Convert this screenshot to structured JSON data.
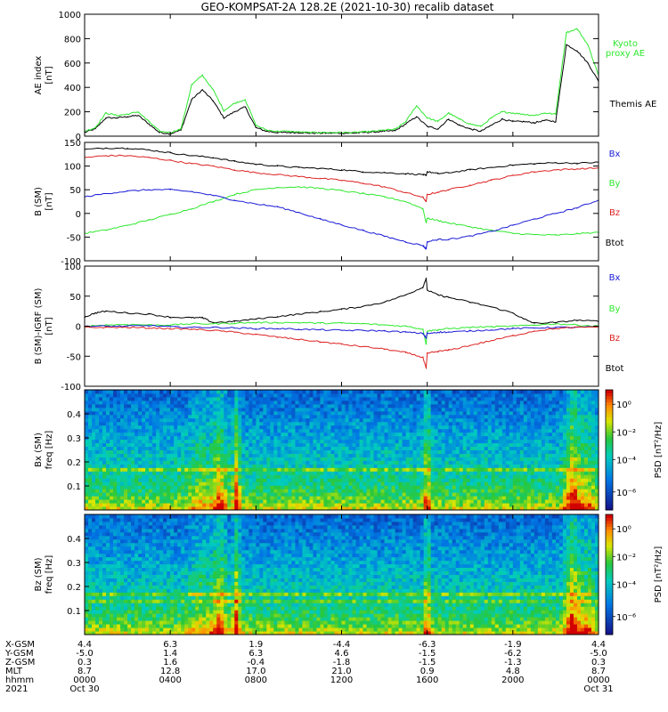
{
  "chart_data": {
    "title": "GEO-KOMPSAT-2A 128.2E (2021-10-30) recalib dataset",
    "type": "multi-panel line + spectrogram",
    "colors": {
      "black": "#000000",
      "green": "#2ee82e",
      "red": "#dd2222",
      "blue": "#1a1ad6"
    },
    "panels": [
      {
        "type": "line",
        "ylabel_main": "AE index",
        "ylabel_unit": "[nT]",
        "ylim": [
          0,
          1000
        ],
        "yticks": [
          "0",
          "200",
          "400",
          "600",
          "800",
          "1000"
        ],
        "legend": [
          {
            "label": "Kyoto proxy AE",
            "color": "#2ee82e"
          },
          {
            "label": "Themis AE",
            "color": "#000000"
          }
        ],
        "series": [
          {
            "name": "Themis AE",
            "color": "#000000",
            "x": [
              0,
              0.5,
              1,
              1.5,
              2,
              2.5,
              3,
              3.5,
              4,
              4.5,
              5,
              5.5,
              6,
              6.5,
              7,
              7.5,
              8,
              8.5,
              9,
              9.5,
              10,
              10.5,
              11,
              11.5,
              12,
              12.5,
              13,
              13.5,
              14,
              14.5,
              15,
              15.5,
              16,
              16.5,
              17,
              17.5,
              18,
              18.5,
              19,
              19.5,
              20,
              20.5,
              21,
              21.5,
              22,
              22.5,
              23,
              23.5,
              24
            ],
            "values": [
              30,
              60,
              150,
              150,
              160,
              170,
              100,
              30,
              20,
              50,
              300,
              380,
              290,
              150,
              200,
              240,
              70,
              40,
              30,
              30,
              30,
              25,
              25,
              25,
              25,
              25,
              30,
              35,
              40,
              45,
              100,
              160,
              80,
              60,
              140,
              90,
              60,
              40,
              90,
              140,
              120,
              120,
              110,
              130,
              120,
              750,
              700,
              600,
              450
            ]
          },
          {
            "name": "Kyoto proxy AE",
            "color": "#2ee82e",
            "x": [
              0,
              0.5,
              1,
              1.5,
              2,
              2.5,
              3,
              3.5,
              4,
              4.5,
              5,
              5.5,
              6,
              6.5,
              7,
              7.5,
              8,
              8.5,
              9,
              9.5,
              10,
              10.5,
              11,
              11.5,
              12,
              12.5,
              13,
              13.5,
              14,
              14.5,
              15,
              15.5,
              16,
              16.5,
              17,
              17.5,
              18,
              18.5,
              19,
              19.5,
              20,
              20.5,
              21,
              21.5,
              22,
              22.5,
              23,
              23.5,
              24
            ],
            "values": [
              40,
              70,
              190,
              170,
              180,
              200,
              120,
              40,
              30,
              60,
              420,
              500,
              380,
              210,
              270,
              300,
              90,
              50,
              40,
              40,
              35,
              30,
              30,
              30,
              30,
              30,
              35,
              40,
              50,
              55,
              120,
              250,
              150,
              120,
              190,
              140,
              100,
              80,
              150,
              200,
              190,
              180,
              170,
              190,
              180,
              850,
              880,
              750,
              500
            ]
          }
        ]
      },
      {
        "type": "line",
        "ylabel_main": "B (SM)",
        "ylabel_unit": "[nT]",
        "ylim": [
          -100,
          150
        ],
        "yticks": [
          "-100",
          "-50",
          "0",
          "50",
          "100",
          "150"
        ],
        "legend": [
          {
            "label": "Bx",
            "color": "#1a1ad6"
          },
          {
            "label": "By",
            "color": "#2ee82e"
          },
          {
            "label": "Bz",
            "color": "#dd2222"
          },
          {
            "label": "Btot",
            "color": "#000000"
          }
        ],
        "series": [
          {
            "name": "Btot",
            "color": "#000000",
            "x": [
              0,
              1,
              2,
              3,
              4,
              5,
              6,
              7,
              8,
              9,
              10,
              11,
              12,
              13,
              14,
              15,
              15.8,
              15.95,
              16,
              16.5,
              17,
              18,
              19,
              20,
              21,
              22,
              23,
              24
            ],
            "values": [
              135,
              138,
              138,
              134,
              128,
              122,
              118,
              110,
              104,
              100,
              97,
              95,
              92,
              88,
              86,
              84,
              82,
              80,
              88,
              84,
              86,
              92,
              97,
              102,
              105,
              107,
              106,
              108
            ]
          },
          {
            "name": "Bz",
            "color": "#dd2222",
            "x": [
              0,
              1,
              2,
              3,
              4,
              5,
              6,
              7,
              8,
              9,
              10,
              11,
              12,
              13,
              14,
              15,
              15.8,
              15.95,
              16,
              16.5,
              17,
              18,
              19,
              20,
              21,
              22,
              23,
              24
            ],
            "values": [
              118,
              122,
              122,
              118,
              112,
              105,
              100,
              92,
              86,
              82,
              78,
              74,
              70,
              64,
              56,
              44,
              34,
              25,
              40,
              45,
              50,
              60,
              70,
              80,
              88,
              92,
              94,
              96
            ]
          },
          {
            "name": "By",
            "color": "#2ee82e",
            "x": [
              0,
              1,
              2,
              3,
              4,
              5,
              6,
              7,
              8,
              9,
              10,
              11,
              12,
              13,
              14,
              15,
              15.8,
              15.95,
              16,
              16.5,
              17,
              18,
              19,
              20,
              21,
              22,
              23,
              24
            ],
            "values": [
              -42,
              -35,
              -25,
              -14,
              -2,
              10,
              25,
              40,
              50,
              55,
              56,
              53,
              48,
              42,
              35,
              25,
              10,
              -20,
              -10,
              -15,
              -20,
              -28,
              -36,
              -42,
              -45,
              -46,
              -43,
              -40
            ]
          },
          {
            "name": "Bx",
            "color": "#1a1ad6",
            "x": [
              0,
              1,
              2,
              3,
              4,
              5,
              6,
              7,
              8,
              9,
              10,
              11,
              12,
              13,
              14,
              15,
              15.8,
              15.95,
              16,
              16.5,
              17,
              18,
              19,
              20,
              21,
              22,
              23,
              24
            ],
            "values": [
              35,
              42,
              47,
              50,
              50,
              46,
              38,
              28,
              20,
              14,
              2,
              -12,
              -24,
              -36,
              -48,
              -60,
              -68,
              -75,
              -60,
              -55,
              -55,
              -48,
              -38,
              -25,
              -12,
              0,
              12,
              28
            ]
          }
        ]
      },
      {
        "type": "line",
        "ylabel_main": "B (SM)-IGRF (SM)",
        "ylabel_unit": "[nT]",
        "ylim": [
          -100,
          100
        ],
        "yticks": [
          "-100",
          "-50",
          "0",
          "50",
          "100"
        ],
        "legend": [
          {
            "label": "Bx",
            "color": "#1a1ad6"
          },
          {
            "label": "By",
            "color": "#2ee82e"
          },
          {
            "label": "Bz",
            "color": "#dd2222"
          },
          {
            "label": "Btot",
            "color": "#000000"
          }
        ],
        "series": [
          {
            "name": "Btot",
            "color": "#000000",
            "x": [
              0,
              0.5,
              1,
              2,
              3,
              4,
              5,
              5.5,
              6,
              7,
              8,
              9,
              10,
              11,
              12,
              13,
              14,
              15,
              15.8,
              15.95,
              16,
              16.5,
              17,
              18,
              19,
              20,
              20.5,
              21,
              22,
              23,
              24
            ],
            "values": [
              15,
              22,
              25,
              22,
              20,
              15,
              14,
              14,
              6,
              8,
              12,
              16,
              20,
              24,
              28,
              33,
              40,
              52,
              65,
              80,
              60,
              52,
              48,
              40,
              32,
              22,
              12,
              5,
              6,
              10,
              8
            ]
          },
          {
            "name": "By",
            "color": "#2ee82e",
            "x": [
              0,
              1,
              2,
              3,
              4,
              5,
              6,
              7,
              8,
              9,
              10,
              11,
              12,
              13,
              14,
              15,
              15.8,
              15.95,
              16,
              16.5,
              17,
              18,
              19,
              20,
              21,
              22,
              23,
              24
            ],
            "values": [
              0,
              2,
              3,
              2,
              2,
              4,
              4,
              5,
              6,
              6,
              6,
              5,
              5,
              4,
              2,
              0,
              -5,
              -30,
              -8,
              -6,
              -4,
              -2,
              -1,
              0,
              2,
              4,
              2,
              0
            ]
          },
          {
            "name": "Bx",
            "color": "#1a1ad6",
            "x": [
              0,
              1,
              2,
              3,
              4,
              5,
              6,
              7,
              8,
              9,
              10,
              11,
              12,
              13,
              14,
              15,
              15.8,
              15.95,
              16,
              16.5,
              17,
              18,
              19,
              20,
              21,
              22,
              23,
              24
            ],
            "values": [
              0,
              0,
              0,
              1,
              -1,
              -2,
              -2,
              -3,
              -4,
              -4,
              -5,
              -6,
              -7,
              -7,
              -8,
              -10,
              -12,
              -20,
              -12,
              -10,
              -10,
              -8,
              -6,
              -4,
              -3,
              -2,
              -2,
              -1
            ]
          },
          {
            "name": "Bz",
            "color": "#dd2222",
            "x": [
              0,
              1,
              2,
              3,
              4,
              5,
              6,
              7,
              8,
              9,
              10,
              11,
              12,
              13,
              14,
              15,
              15.8,
              15.95,
              16,
              16.5,
              17,
              18,
              19,
              20,
              21,
              22,
              23,
              24
            ],
            "values": [
              -2,
              -2,
              -2,
              -3,
              -4,
              -5,
              -7,
              -10,
              -14,
              -18,
              -22,
              -26,
              -30,
              -34,
              -38,
              -44,
              -52,
              -70,
              -45,
              -42,
              -40,
              -32,
              -24,
              -16,
              -8,
              -4,
              -2,
              -1
            ]
          }
        ]
      },
      {
        "type": "heatmap",
        "ylabel_main": "Bx (SM)",
        "ylabel_unit": "freq [Hz]",
        "ylim": [
          0,
          0.5
        ],
        "yticks": [
          "0.1",
          "0.2",
          "0.3",
          "0.4"
        ],
        "cbar_label": "PSD [nT²/Hz]",
        "cbar_ticks": [
          "10⁰",
          "10⁻²",
          "10⁻⁴",
          "10⁻⁶"
        ]
      },
      {
        "type": "heatmap",
        "ylabel_main": "Bz (SM)",
        "ylabel_unit": "freq [Hz]",
        "ylim": [
          0,
          0.5
        ],
        "yticks": [
          "0.1",
          "0.2",
          "0.3",
          "0.4"
        ],
        "cbar_label": "PSD [nT²/Hz]",
        "cbar_ticks": [
          "10⁰",
          "10⁻²",
          "10⁻⁴",
          "10⁻⁶"
        ]
      }
    ],
    "footer": {
      "row_labels": [
        "X-GSM",
        "Y-GSM",
        "Z-GSM",
        "MLT",
        "hhmm",
        "2021"
      ],
      "columns": [
        [
          "4.4",
          "-5.0",
          "0.3",
          "8.7",
          "0000",
          "Oct 30"
        ],
        [
          "6.3",
          "1.4",
          "1.6",
          "12.8",
          "0400",
          ""
        ],
        [
          "1.9",
          "6.3",
          "-0.4",
          "17.0",
          "0800",
          ""
        ],
        [
          "-4.4",
          "4.6",
          "-1.8",
          "21.0",
          "1200",
          ""
        ],
        [
          "-6.3",
          "-1.5",
          "-1.5",
          "0.9",
          "1600",
          ""
        ],
        [
          "-1.9",
          "-6.2",
          "-1.3",
          "4.8",
          "2000",
          ""
        ],
        [
          "4.4",
          "-5.0",
          "0.3",
          "8.7",
          "0000",
          "Oct 31"
        ]
      ]
    }
  }
}
